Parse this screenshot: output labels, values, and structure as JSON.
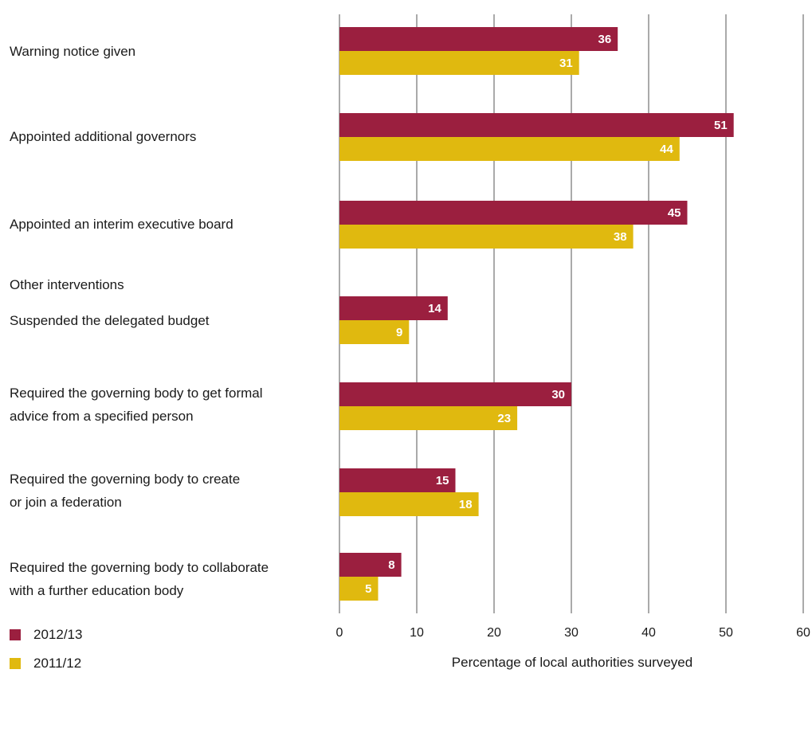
{
  "chart_data": {
    "type": "bar",
    "orientation": "horizontal",
    "section_label": "Other interventions",
    "categories": [
      [
        "Warning notice given"
      ],
      [
        "Appointed additional governors"
      ],
      [
        "Appointed an interim executive board"
      ],
      [
        "Suspended the delegated budget"
      ],
      [
        "Required the governing body to get formal",
        "advice from a specified person"
      ],
      [
        "Required the governing body to create",
        "or join a federation"
      ],
      [
        "Required the governing body to collaborate",
        "with a further education body"
      ]
    ],
    "series": [
      {
        "name": "2012/13",
        "color": "#9b1f3f",
        "values": [
          36,
          51,
          45,
          14,
          30,
          15,
          8
        ]
      },
      {
        "name": "2011/12",
        "color": "#e0b90f",
        "values": [
          31,
          44,
          38,
          9,
          23,
          18,
          5
        ]
      }
    ],
    "xlabel": "Percentage of local authorities surveyed",
    "xlim": [
      0,
      60
    ],
    "xticks": [
      0,
      10,
      20,
      30,
      40,
      50,
      60
    ],
    "grid": true,
    "legend_position": "bottom-left"
  }
}
